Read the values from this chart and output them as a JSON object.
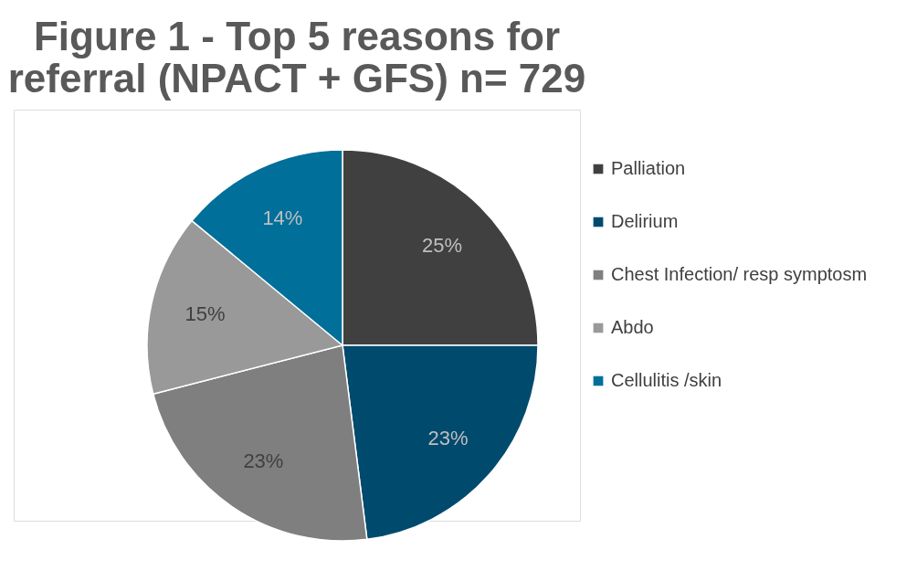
{
  "chart_data": {
    "type": "pie",
    "title": [
      "Figure 1 - Top 5 reasons for",
      "referral (NPACT + GFS) n= 729"
    ],
    "categories": [
      "Palliation",
      "Delirium",
      "Chest Infection/ resp symptosm",
      "Abdo",
      "Cellulitis /skin"
    ],
    "values": [
      25,
      23,
      23,
      15,
      14
    ],
    "colors": [
      "#404040",
      "#004a6e",
      "#7f7f7f",
      "#999999",
      "#006f9a"
    ],
    "value_labels": [
      "25%",
      "23%",
      "23%",
      "15%",
      "14%"
    ],
    "legend": "right"
  }
}
